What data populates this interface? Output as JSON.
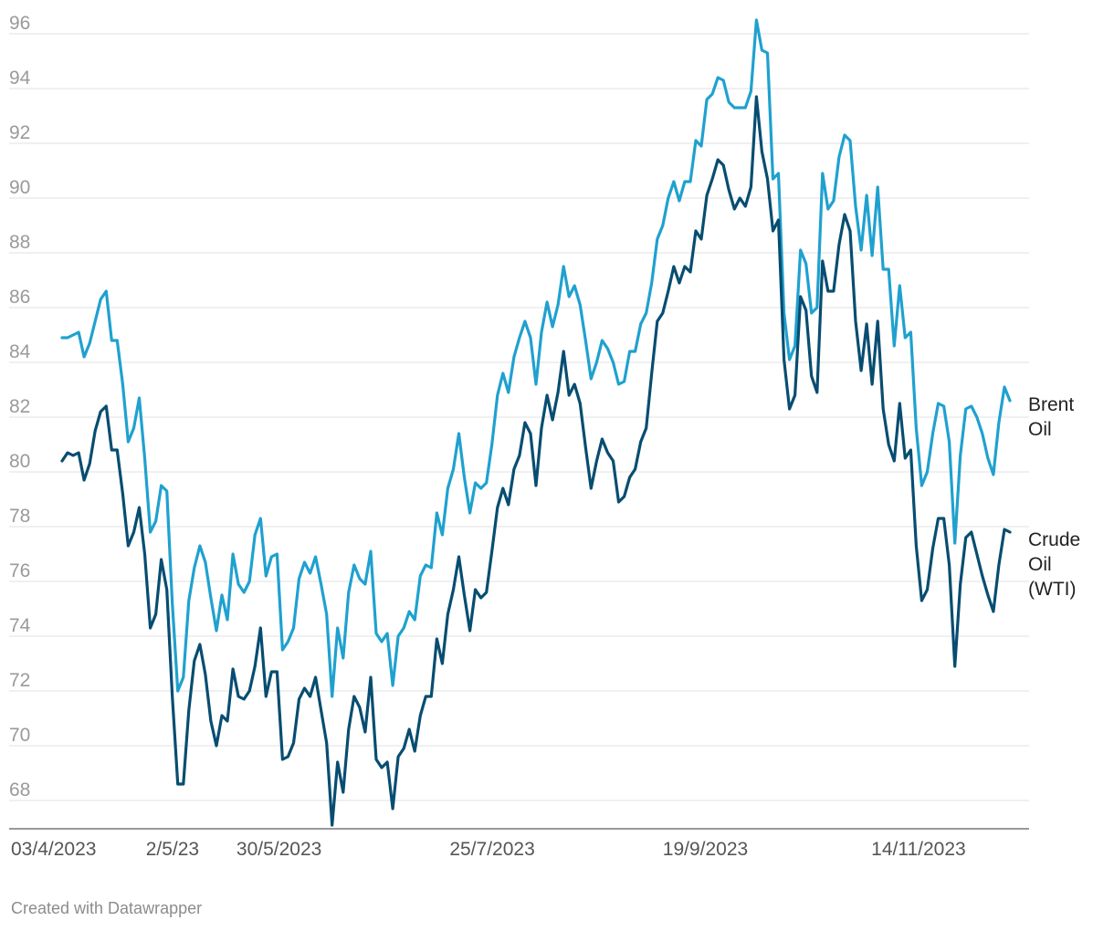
{
  "chart_data": {
    "type": "line",
    "title": "",
    "xlabel": "",
    "ylabel": "",
    "ylim": [
      67,
      96.5
    ],
    "yticks": [
      68,
      70,
      72,
      74,
      76,
      78,
      80,
      82,
      84,
      86,
      88,
      90,
      92,
      94,
      96
    ],
    "grid": true,
    "legend": "direct-labels-right",
    "x_ticks": [
      {
        "label": "03/4/2023",
        "date": "2023-04-03"
      },
      {
        "label": "2/5/23",
        "date": "2023-05-02"
      },
      {
        "label": "30/5/2023",
        "date": "2023-05-30"
      },
      {
        "label": "25/7/2023",
        "date": "2023-07-25"
      },
      {
        "label": "19/9/2023",
        "date": "2023-09-19"
      },
      {
        "label": "14/11/2023",
        "date": "2023-11-14"
      }
    ],
    "x_start": "2023-04-03",
    "x_end": "2023-12-08",
    "series": [
      {
        "name": "Brent Oil",
        "label_lines": [
          "Brent",
          "Oil"
        ],
        "color": "#1fa1cf",
        "values": [
          84.9,
          84.9,
          85.0,
          85.1,
          84.2,
          84.7,
          85.5,
          86.3,
          86.6,
          84.8,
          84.8,
          83.2,
          81.1,
          81.6,
          82.7,
          80.5,
          77.8,
          78.2,
          79.5,
          79.3,
          75.2,
          72.0,
          72.5,
          75.3,
          76.5,
          77.3,
          76.7,
          75.4,
          74.2,
          75.5,
          74.6,
          77.0,
          75.9,
          75.6,
          76.0,
          77.7,
          78.3,
          76.2,
          76.9,
          77.0,
          73.5,
          73.8,
          74.3,
          76.1,
          76.7,
          76.3,
          76.9,
          75.9,
          74.8,
          71.8,
          74.3,
          73.2,
          75.6,
          76.6,
          76.1,
          75.9,
          77.1,
          74.1,
          73.8,
          74.1,
          72.2,
          74.0,
          74.3,
          74.9,
          74.6,
          76.2,
          76.6,
          76.5,
          78.5,
          77.7,
          79.4,
          80.1,
          81.4,
          79.8,
          78.5,
          79.6,
          79.4,
          79.6,
          81.0,
          82.8,
          83.6,
          82.9,
          84.2,
          84.9,
          85.5,
          84.9,
          83.2,
          85.1,
          86.2,
          85.3,
          86.1,
          87.5,
          86.4,
          86.8,
          86.1,
          84.8,
          83.4,
          84.0,
          84.8,
          84.5,
          84.0,
          83.2,
          83.3,
          84.4,
          84.4,
          85.4,
          85.8,
          86.9,
          88.5,
          89.0,
          90.0,
          90.6,
          89.9,
          90.6,
          90.6,
          92.1,
          91.9,
          93.6,
          93.8,
          94.4,
          94.3,
          93.5,
          93.3,
          93.3,
          93.3,
          93.9,
          96.5,
          95.4,
          95.3,
          90.7,
          90.9,
          85.8,
          84.1,
          84.6,
          88.1,
          87.6,
          85.8,
          86.0,
          90.9,
          89.6,
          89.9,
          91.5,
          92.3,
          92.1,
          89.7,
          88.1,
          90.1,
          87.9,
          90.4,
          87.4,
          87.4,
          84.6,
          86.8,
          84.9,
          85.1,
          81.6,
          79.5,
          80.0,
          81.4,
          82.5,
          82.4,
          81.1,
          77.4,
          80.6,
          82.3,
          82.4,
          82.0,
          81.4,
          80.5,
          79.9,
          81.8,
          83.1,
          82.6
        ]
      },
      {
        "name": "Crude Oil (WTI)",
        "label_lines": [
          "Crude",
          "Oil",
          "(WTI)"
        ],
        "color": "#074d71",
        "values": [
          80.4,
          80.7,
          80.6,
          80.7,
          79.7,
          80.3,
          81.5,
          82.2,
          82.4,
          80.8,
          80.8,
          79.2,
          77.3,
          77.8,
          78.7,
          77.0,
          74.3,
          74.8,
          76.8,
          75.7,
          71.8,
          68.6,
          68.6,
          71.3,
          73.1,
          73.7,
          72.6,
          70.9,
          70.0,
          71.1,
          70.9,
          72.8,
          71.8,
          71.7,
          72.0,
          72.9,
          74.3,
          71.8,
          72.7,
          72.7,
          69.5,
          69.6,
          70.1,
          71.7,
          72.1,
          71.8,
          72.5,
          71.3,
          70.1,
          67.1,
          69.4,
          68.3,
          70.6,
          71.8,
          71.4,
          70.5,
          72.5,
          69.5,
          69.2,
          69.4,
          67.7,
          69.6,
          69.9,
          70.6,
          69.8,
          71.1,
          71.8,
          71.8,
          73.9,
          73.0,
          74.8,
          75.7,
          76.9,
          75.5,
          74.2,
          75.7,
          75.4,
          75.6,
          77.1,
          78.7,
          79.4,
          78.8,
          80.1,
          80.6,
          81.8,
          81.4,
          79.5,
          81.6,
          82.8,
          81.9,
          82.9,
          84.4,
          82.8,
          83.2,
          82.5,
          80.9,
          79.4,
          80.4,
          81.2,
          80.7,
          80.4,
          78.9,
          79.1,
          79.8,
          80.1,
          81.1,
          81.6,
          83.6,
          85.5,
          85.8,
          86.6,
          87.5,
          86.9,
          87.5,
          87.3,
          88.8,
          88.5,
          90.1,
          90.7,
          91.4,
          91.2,
          90.3,
          89.6,
          90.0,
          89.7,
          90.4,
          93.7,
          91.7,
          90.7,
          88.8,
          89.2,
          84.1,
          82.3,
          82.8,
          86.4,
          85.9,
          83.5,
          82.9,
          87.7,
          86.6,
          86.6,
          88.3,
          89.4,
          88.8,
          85.5,
          83.7,
          85.4,
          83.2,
          85.5,
          82.3,
          81.0,
          80.4,
          82.5,
          80.5,
          80.8,
          77.3,
          75.3,
          75.7,
          77.2,
          78.3,
          78.3,
          76.6,
          72.9,
          75.9,
          77.6,
          77.8,
          77.0,
          76.2,
          75.5,
          74.9,
          76.6,
          77.9,
          77.8
        ]
      }
    ]
  },
  "footer": {
    "credit": "Created with Datawrapper"
  }
}
